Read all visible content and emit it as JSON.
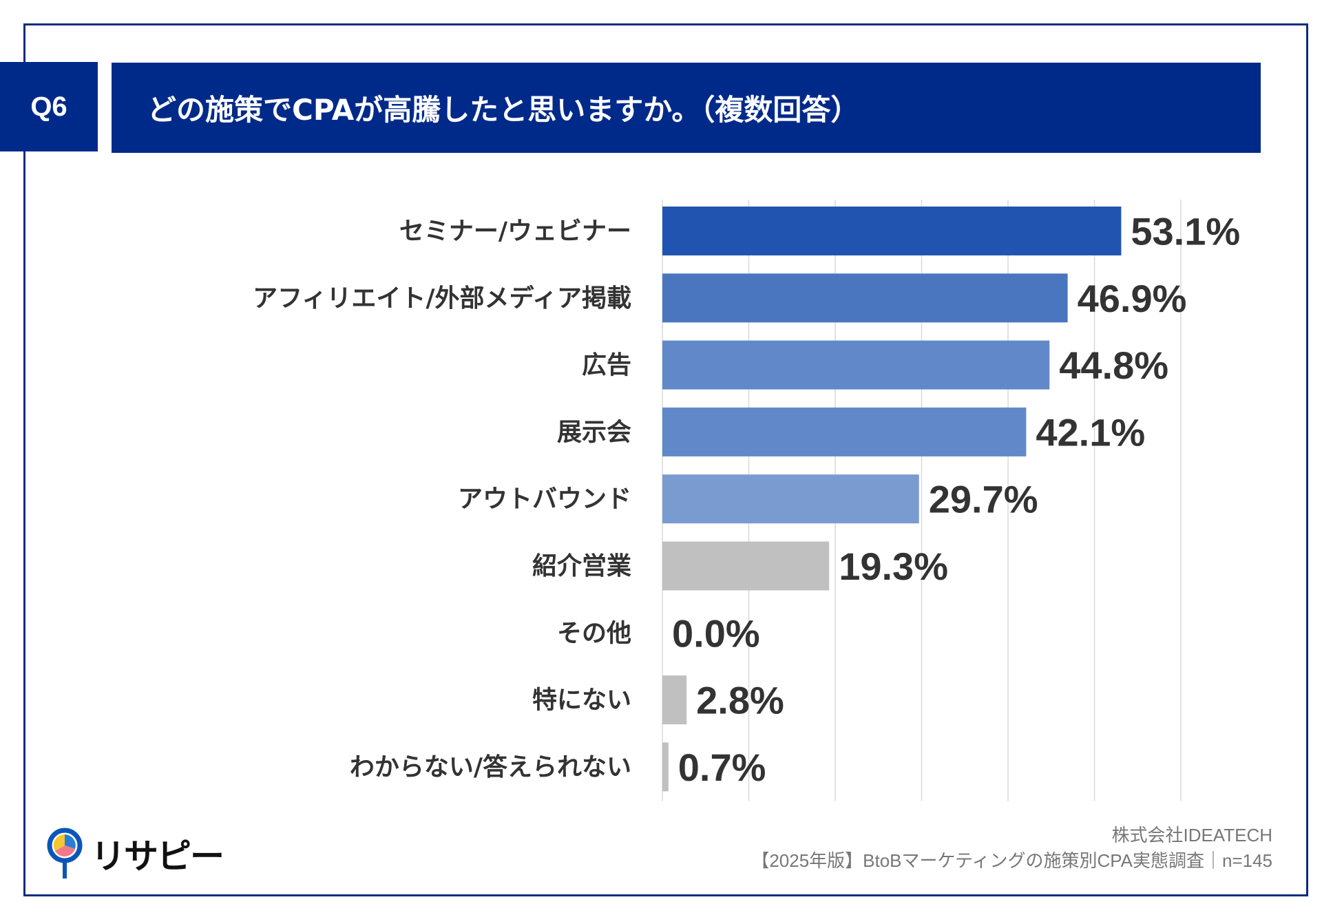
{
  "header": {
    "badge": "Q6",
    "title": "どの施策でCPAが高騰したと思いますか。（複数回答）"
  },
  "chart_data": {
    "type": "bar",
    "orientation": "horizontal",
    "categories": [
      "セミナー/ウェビナー",
      "アフィリエイト/外部メディア掲載",
      "広告",
      "展示会",
      "アウトバウンド",
      "紹介営業",
      "その他",
      "特にない",
      "わからない/答えられない"
    ],
    "values": [
      53.1,
      46.9,
      44.8,
      42.1,
      29.7,
      19.3,
      0.0,
      2.8,
      0.7
    ],
    "data_labels": [
      "53.1%",
      "46.9%",
      "44.8%",
      "42.1%",
      "29.7%",
      "19.3%",
      "0.0%",
      "2.8%",
      "0.7%"
    ],
    "colors": [
      "#2154b0",
      "#4a76c0",
      "#6189c9",
      "#6189c9",
      "#7a9bd0",
      "#c0c0c0",
      "#c0c0c0",
      "#c0c0c0",
      "#c0c0c0"
    ],
    "xlim": [
      0,
      60
    ],
    "grid": true,
    "grid_step": 10
  },
  "footer": {
    "company": "株式会社IDEATECH",
    "source": "【2025年版】BtoBマーケティングの施策別CPA実態調査｜n=145"
  },
  "logo": {
    "text": "リサピー"
  }
}
